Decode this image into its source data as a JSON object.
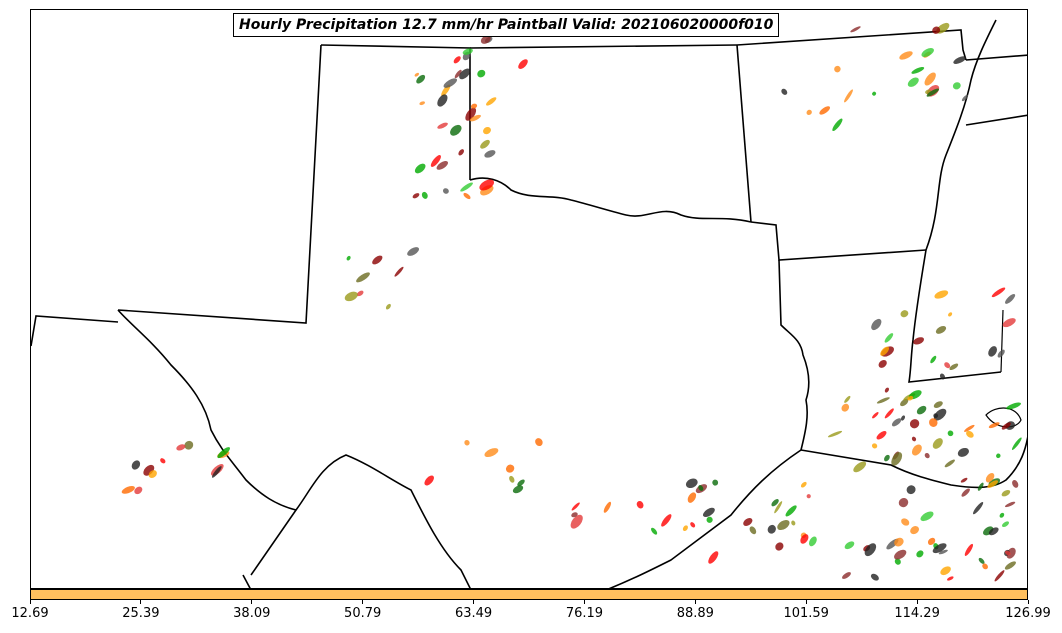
{
  "title": "Hourly Precipitation 12.7 mm/hr Paintball Valid: 202106020000f010",
  "colorbar": {
    "color": "#ffbf5e",
    "ticks": [
      "12.69",
      "25.39",
      "38.09",
      "50.79",
      "63.49",
      "76.19",
      "88.89",
      "101.59",
      "114.29",
      "126.99"
    ]
  },
  "paint_colors": [
    "#00aa00",
    "#33cc33",
    "#0a6b0a",
    "#ff8c1a",
    "#ffa500",
    "#ff0000",
    "#e33a3a",
    "#8b0000",
    "#8b2b2b",
    "#9a9a1a",
    "#6b6b20",
    "#222222",
    "#555555",
    "#ff6a00"
  ]
}
